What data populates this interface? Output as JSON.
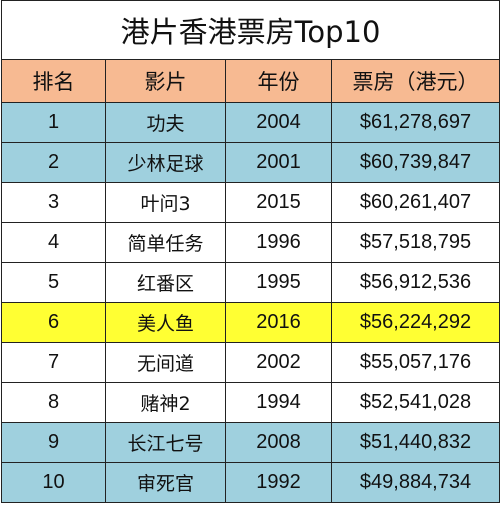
{
  "title": "港片香港票房Top10",
  "headers": [
    "排名",
    "影片",
    "年份",
    "票房（港元）"
  ],
  "colors": {
    "header": "#f7ba92",
    "blue_row": "#9fd0de",
    "white_row": "#ffffff",
    "highlight_row": "#ffff33"
  },
  "rows": [
    {
      "rank": "1",
      "film": "功夫",
      "year": "2004",
      "box_office": "$61,278,697",
      "color": "#9fd0de"
    },
    {
      "rank": "2",
      "film": "少林足球",
      "year": "2001",
      "box_office": "$60,739,847",
      "color": "#9fd0de"
    },
    {
      "rank": "3",
      "film": "叶问3",
      "year": "2015",
      "box_office": "$60,261,407",
      "color": "#ffffff"
    },
    {
      "rank": "4",
      "film": "简单任务",
      "year": "1996",
      "box_office": "$57,518,795",
      "color": "#ffffff"
    },
    {
      "rank": "5",
      "film": "红番区",
      "year": "1995",
      "box_office": "$56,912,536",
      "color": "#ffffff"
    },
    {
      "rank": "6",
      "film": "美人鱼",
      "year": "2016",
      "box_office": "$56,224,292",
      "color": "#ffff33"
    },
    {
      "rank": "7",
      "film": "无间道",
      "year": "2002",
      "box_office": "$55,057,176",
      "color": "#ffffff"
    },
    {
      "rank": "8",
      "film": "赌神2",
      "year": "1994",
      "box_office": "$52,541,028",
      "color": "#ffffff"
    },
    {
      "rank": "9",
      "film": "长江七号",
      "year": "2008",
      "box_office": "$51,440,832",
      "color": "#9fd0de"
    },
    {
      "rank": "10",
      "film": "审死官",
      "year": "1992",
      "box_office": "$49,884,734",
      "color": "#9fd0de"
    }
  ]
}
